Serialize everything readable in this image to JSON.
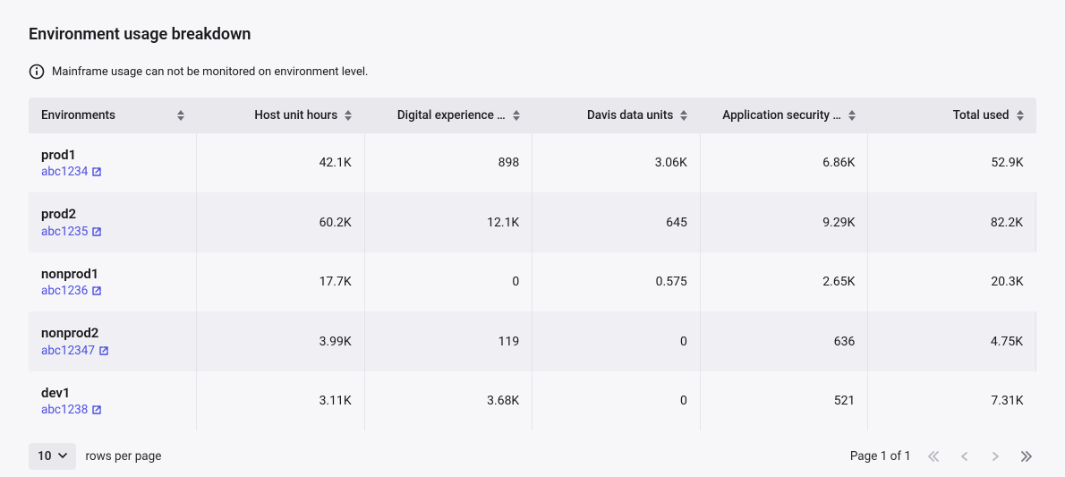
{
  "title": "Environment usage breakdown",
  "info_message": "Mainframe usage can not be monitored on environment level.",
  "columns": [
    {
      "label": "Environments"
    },
    {
      "label": "Host unit hours"
    },
    {
      "label": "Digital experience …"
    },
    {
      "label": "Davis data units"
    },
    {
      "label": "Application security …"
    },
    {
      "label": "Total used"
    }
  ],
  "rows": [
    {
      "env": "prod1",
      "link": "abc1234",
      "host": "42.1K",
      "dex": "898",
      "davis": "3.06K",
      "appsec": "6.86K",
      "total": "52.9K"
    },
    {
      "env": "prod2",
      "link": "abc1235",
      "host": "60.2K",
      "dex": "12.1K",
      "davis": "645",
      "appsec": "9.29K",
      "total": "82.2K"
    },
    {
      "env": "nonprod1",
      "link": "abc1236",
      "host": "17.7K",
      "dex": "0",
      "davis": "0.575",
      "appsec": "2.65K",
      "total": "20.3K"
    },
    {
      "env": "nonprod2",
      "link": "abc12347",
      "host": "3.99K",
      "dex": "119",
      "davis": "0",
      "appsec": "636",
      "total": "4.75K"
    },
    {
      "env": "dev1",
      "link": "abc1238",
      "host": "3.11K",
      "dex": "3.68K",
      "davis": "0",
      "appsec": "521",
      "total": "7.31K"
    }
  ],
  "pager": {
    "rows_per_page_value": "10",
    "rows_per_page_label": "rows per page",
    "page_status": "Page 1 of 1"
  },
  "colors": {
    "background": "#f7f7fa",
    "header_bg": "#e8e8ed",
    "row_alt_bg": "#efeff4",
    "text": "#1b1b1f",
    "link": "#4b4ee0",
    "border": "#e6e6eb",
    "nav_disabled": "#b8b8c0",
    "nav_enabled": "#7a7a82"
  }
}
